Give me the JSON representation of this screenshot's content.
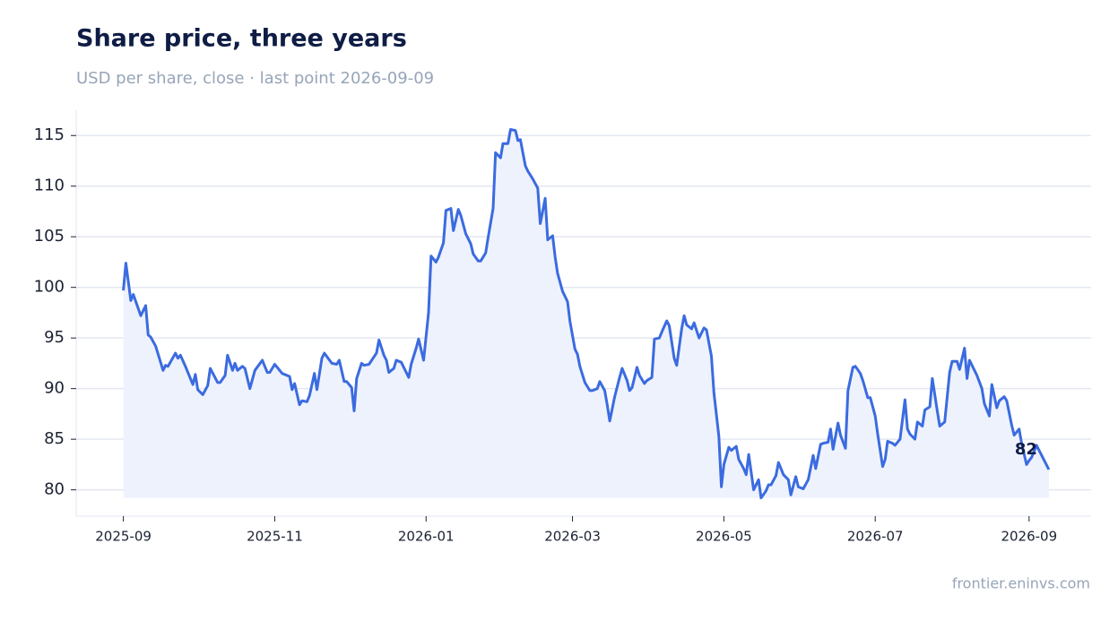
{
  "chart_data": {
    "type": "line",
    "title": "Share price, three years",
    "subtitle": "USD per share, close · last point 2026-09-09",
    "source": "frontier.eninvs.com",
    "color": "#3b6be0",
    "area": true,
    "area_color": "#eef2fc",
    "grid": true,
    "x": [
      "2025-09-01",
      "2025-09-02",
      "2025-09-04",
      "2025-09-05",
      "2025-09-08",
      "2025-09-10",
      "2025-09-11",
      "2025-09-12",
      "2025-09-14",
      "2025-09-17",
      "2025-09-18",
      "2025-09-19",
      "2025-09-22",
      "2025-09-23",
      "2025-09-24",
      "2025-09-26",
      "2025-09-29",
      "2025-09-30",
      "2025-10-01",
      "2025-10-03",
      "2025-10-05",
      "2025-10-06",
      "2025-10-09",
      "2025-10-10",
      "2025-10-12",
      "2025-10-13",
      "2025-10-15",
      "2025-10-16",
      "2025-10-17",
      "2025-10-19",
      "2025-10-20",
      "2025-10-22",
      "2025-10-24",
      "2025-10-27",
      "2025-10-29",
      "2025-10-30",
      "2025-11-01",
      "2025-11-04",
      "2025-11-07",
      "2025-11-08",
      "2025-11-09",
      "2025-11-11",
      "2025-11-12",
      "2025-11-14",
      "2025-11-15",
      "2025-11-17",
      "2025-11-18",
      "2025-11-20",
      "2025-11-21",
      "2025-11-24",
      "2025-11-26",
      "2025-11-27",
      "2025-11-29",
      "2025-11-30",
      "2025-12-02",
      "2025-12-03",
      "2025-12-04",
      "2025-12-06",
      "2025-12-07",
      "2025-12-09",
      "2025-12-12",
      "2025-12-13",
      "2025-12-15",
      "2025-12-16",
      "2025-12-17",
      "2025-12-19",
      "2025-12-20",
      "2025-12-22",
      "2025-12-23",
      "2025-12-25",
      "2025-12-26",
      "2025-12-28",
      "2025-12-29",
      "2025-12-31",
      "2026-01-02",
      "2026-01-03",
      "2026-01-05",
      "2026-01-06",
      "2026-01-08",
      "2026-01-09",
      "2026-01-11",
      "2026-01-12",
      "2026-01-14",
      "2026-01-15",
      "2026-01-17",
      "2026-01-19",
      "2026-01-20",
      "2026-01-22",
      "2026-01-23",
      "2026-01-25",
      "2026-01-26",
      "2026-01-28",
      "2026-01-29",
      "2026-01-31",
      "2026-02-01",
      "2026-02-03",
      "2026-02-04",
      "2026-02-06",
      "2026-02-07",
      "2026-02-08",
      "2026-02-10",
      "2026-02-11",
      "2026-02-13",
      "2026-02-15",
      "2026-02-16",
      "2026-02-18",
      "2026-02-19",
      "2026-02-21",
      "2026-02-22",
      "2026-02-23",
      "2026-02-25",
      "2026-02-27",
      "2026-02-28",
      "2026-03-02",
      "2026-03-03",
      "2026-03-04",
      "2026-03-06",
      "2026-03-08",
      "2026-03-09",
      "2026-03-11",
      "2026-03-12",
      "2026-03-14",
      "2026-03-15",
      "2026-03-16",
      "2026-03-18",
      "2026-03-20",
      "2026-03-21",
      "2026-03-23",
      "2026-03-24",
      "2026-03-25",
      "2026-03-27",
      "2026-03-28",
      "2026-03-30",
      "2026-03-31",
      "2026-04-02",
      "2026-04-03",
      "2026-04-05",
      "2026-04-06",
      "2026-04-08",
      "2026-04-09",
      "2026-04-11",
      "2026-04-12",
      "2026-04-14",
      "2026-04-15",
      "2026-04-16",
      "2026-04-18",
      "2026-04-19",
      "2026-04-21",
      "2026-04-23",
      "2026-04-24",
      "2026-04-26",
      "2026-04-27",
      "2026-04-29",
      "2026-04-30",
      "2026-05-01",
      "2026-05-03",
      "2026-05-04",
      "2026-05-06",
      "2026-05-07",
      "2026-05-09",
      "2026-05-10",
      "2026-05-11",
      "2026-05-13",
      "2026-05-15",
      "2026-05-16",
      "2026-05-18",
      "2026-05-19",
      "2026-05-20",
      "2026-05-22",
      "2026-05-23",
      "2026-05-25",
      "2026-05-27",
      "2026-05-28",
      "2026-05-30",
      "2026-05-31",
      "2026-06-01",
      "2026-06-02",
      "2026-06-04",
      "2026-06-06",
      "2026-06-07",
      "2026-06-09",
      "2026-06-10",
      "2026-06-12",
      "2026-06-13",
      "2026-06-14",
      "2026-06-16",
      "2026-06-17",
      "2026-06-19",
      "2026-06-20",
      "2026-06-22",
      "2026-06-23",
      "2026-06-25",
      "2026-06-26",
      "2026-06-28",
      "2026-06-29",
      "2026-07-01",
      "2026-07-02",
      "2026-07-04",
      "2026-07-05",
      "2026-07-06",
      "2026-07-08",
      "2026-07-09",
      "2026-07-11",
      "2026-07-13",
      "2026-07-14",
      "2026-07-15",
      "2026-07-17",
      "2026-07-18",
      "2026-07-20",
      "2026-07-21",
      "2026-07-23",
      "2026-07-24",
      "2026-07-26",
      "2026-07-27",
      "2026-07-29",
      "2026-07-31",
      "2026-08-01",
      "2026-08-03",
      "2026-08-04",
      "2026-08-06",
      "2026-08-07",
      "2026-08-08",
      "2026-08-10",
      "2026-08-11",
      "2026-08-13",
      "2026-08-14",
      "2026-08-16",
      "2026-08-17",
      "2026-08-19",
      "2026-08-20",
      "2026-08-22",
      "2026-08-23",
      "2026-08-25",
      "2026-08-26",
      "2026-08-28",
      "2026-08-29",
      "2026-08-31",
      "2026-09-01",
      "2026-09-02",
      "2026-09-04",
      "2026-09-09"
    ],
    "values": [
      99.7,
      102.4,
      98.7,
      99.3,
      97.2,
      98.2,
      95.3,
      95.1,
      94.2,
      91.8,
      92.3,
      92.2,
      93.5,
      93.0,
      93.3,
      92.2,
      90.4,
      91.4,
      89.9,
      89.4,
      90.3,
      92.0,
      90.6,
      90.6,
      91.3,
      93.3,
      91.8,
      92.5,
      91.8,
      92.2,
      92.0,
      90.0,
      91.8,
      92.8,
      91.6,
      91.6,
      92.4,
      91.5,
      91.2,
      89.9,
      90.5,
      88.4,
      88.8,
      88.7,
      89.3,
      91.5,
      89.9,
      93.0,
      93.5,
      92.5,
      92.4,
      92.8,
      90.7,
      90.7,
      90.1,
      87.8,
      91.0,
      92.5,
      92.3,
      92.4,
      93.5,
      94.8,
      93.3,
      92.8,
      91.6,
      92.0,
      92.8,
      92.6,
      92.1,
      91.1,
      92.4,
      94.0,
      94.9,
      92.8,
      97.5,
      103.1,
      102.5,
      103.0,
      104.4,
      107.6,
      107.8,
      105.6,
      107.7,
      107.1,
      105.3,
      104.3,
      103.3,
      102.6,
      102.6,
      103.4,
      104.9,
      107.8,
      113.3,
      112.8,
      114.2,
      114.2,
      115.6,
      115.5,
      114.5,
      114.6,
      112.0,
      111.5,
      110.7,
      109.8,
      106.3,
      108.8,
      104.7,
      105.1,
      103.0,
      101.4,
      99.6,
      98.6,
      96.6,
      93.9,
      93.4,
      92.2,
      90.6,
      89.8,
      89.8,
      90.0,
      90.7,
      89.8,
      88.4,
      86.8,
      89.2,
      91.1,
      92.0,
      90.8,
      89.8,
      90.1,
      92.1,
      91.3,
      90.5,
      90.8,
      91.1,
      94.9,
      95.0,
      95.6,
      96.7,
      96.2,
      93.0,
      92.3,
      95.9,
      97.2,
      96.3,
      95.9,
      96.5,
      95.0,
      96.0,
      95.8,
      93.2,
      89.6,
      85.3,
      80.3,
      82.5,
      84.2,
      83.9,
      84.3,
      83.0,
      82.1,
      81.5,
      83.5,
      80.0,
      81.0,
      79.2,
      79.9,
      80.5,
      80.5,
      81.4,
      82.7,
      81.5,
      81.0,
      79.5,
      81.3,
      80.3,
      80.2,
      80.1,
      81.0,
      83.4,
      82.1,
      84.5,
      84.6,
      84.7,
      86.0,
      84.0,
      86.6,
      85.4,
      84.1,
      89.8,
      92.1,
      92.2,
      91.5,
      90.8,
      89.1,
      89.1,
      87.3,
      85.5,
      82.3,
      83.0,
      84.8,
      84.6,
      84.4,
      85.0,
      88.9,
      86.0,
      85.5,
      85.0,
      86.7,
      86.3,
      87.9,
      88.2,
      91.0,
      87.8,
      86.3,
      86.7,
      91.6,
      92.7,
      92.7,
      91.9,
      94.0,
      91.0,
      92.8,
      91.8,
      91.3,
      90.0,
      88.5,
      87.3,
      90.4,
      88.1,
      88.8,
      89.2,
      88.8,
      86.4,
      85.4,
      86.0,
      84.6,
      82.5,
      82.9,
      83.2,
      84.4,
      82
    ],
    "xlim": [
      "2025-08-13",
      "2026-09-26"
    ],
    "xticks": [
      "2025-09",
      "2025-11",
      "2026-01",
      "2026-03",
      "2026-05",
      "2026-07",
      "2026-09"
    ],
    "ylim": [
      77.4,
      117.5
    ],
    "yticks": [
      80,
      85,
      90,
      95,
      100,
      105,
      110,
      115
    ]
  }
}
